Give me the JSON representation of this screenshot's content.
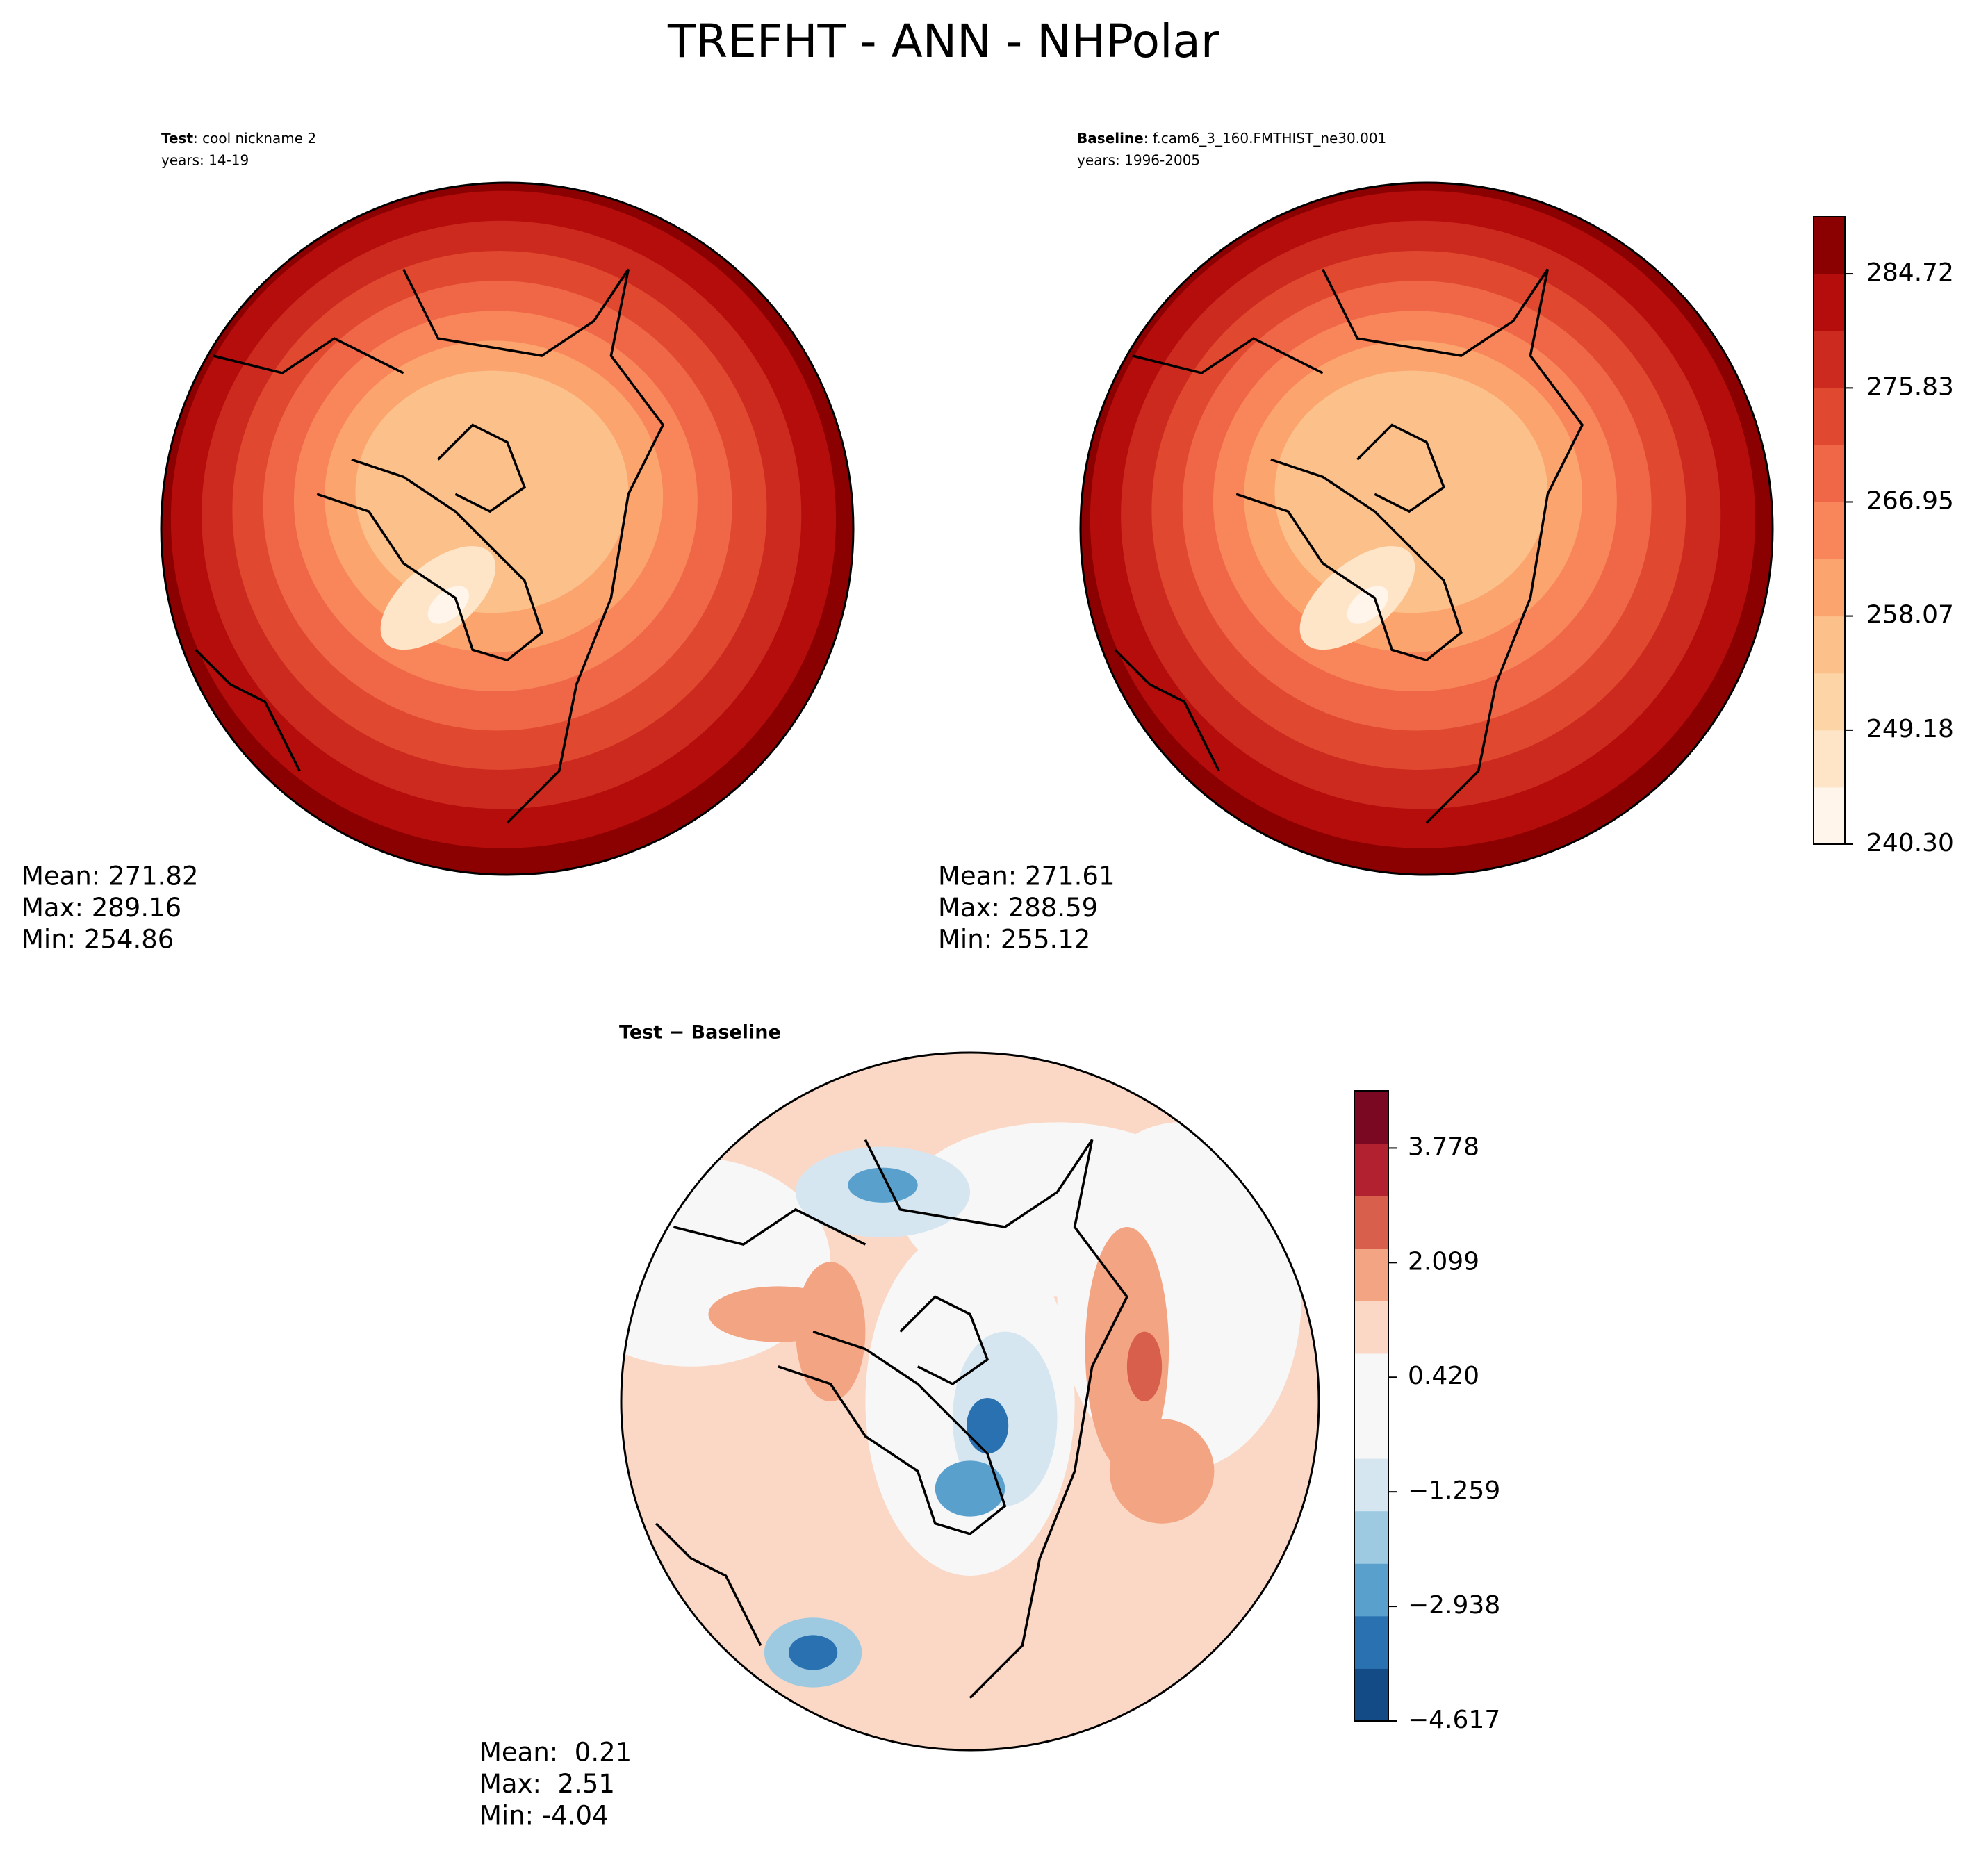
{
  "title": "TREFHT - ANN - NHPolar",
  "chart_data": [
    {
      "type": "polar-map",
      "case_label": "Test",
      "case_name": ": cool nickname 2",
      "years": "years: 14-19",
      "stats": [
        "Mean: 271.82",
        "Max: 289.16",
        "Min: 254.86"
      ]
    },
    {
      "type": "polar-map",
      "case_label": "Baseline",
      "case_name": ": f.cam6_3_160.FMTHIST_ne30.001",
      "years": "years: 1996-2005",
      "stats": [
        "Mean: 271.61",
        "Max: 288.59",
        "Min: 255.12"
      ],
      "colorbar": {
        "ylim": [
          240.3,
          289.16
        ],
        "yticks": [
          {
            "value": 240.3,
            "label": "240.30"
          },
          249.18,
          258.07,
          266.95,
          275.83,
          284.72
        ],
        "colors": [
          "#fff5eb",
          "#fee5c8",
          "#fdd4a5",
          "#fcc08a",
          "#fca46e",
          "#f8865a",
          "#ef6747",
          "#e0482f",
          "#cc2a1e",
          "#b50c0c",
          "#8b0000"
        ]
      }
    },
    {
      "type": "polar-map",
      "title": "Test − Baseline",
      "stats": [
        "Mean:  0.21",
        "Max:  2.51",
        "Min: -4.04"
      ],
      "colorbar": {
        "ylim": [
          -4.617,
          4.617
        ],
        "yticks": [
          {
            "value": -4.617,
            "label": "−4.617"
          },
          {
            "value": -2.938,
            "label": "−2.938"
          },
          {
            "value": -1.259,
            "label": "−1.259"
          },
          {
            "value": 0.42,
            "label": "0.420"
          },
          2.099,
          3.778
        ],
        "colors": [
          "#134b87",
          "#2a71b2",
          "#5aa0cd",
          "#9dcae1",
          "#d5e6f0",
          "#f7f7f7",
          "#f7f7f7",
          "#fbd8c5",
          "#f3a482",
          "#d75f4c",
          "#b2212f",
          "#7a0822"
        ]
      }
    }
  ]
}
